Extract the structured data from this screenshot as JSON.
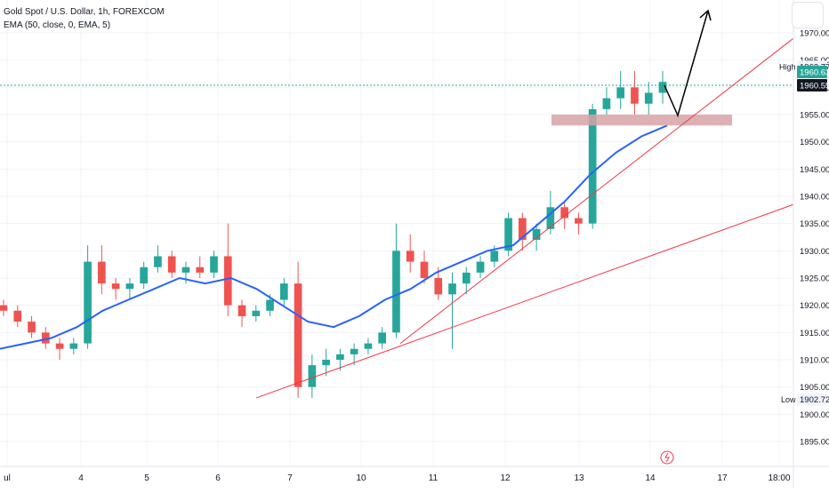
{
  "legend": {
    "symbol": "Gold Spot / U.S. Dollar, 1h, FOREXCOM",
    "indicator": "EMA (50, close, 0, EMA, 5)"
  },
  "price_scale": {
    "high_label": "High",
    "high_value": "1963.77",
    "last_value": "1960.63",
    "line_value": "1960.55",
    "low_label": "Low",
    "low_value": "1902.72"
  },
  "colors": {
    "up": "#26a69a",
    "down": "#ef5350",
    "ema": "#2962ff",
    "trendline": "#f23645",
    "zone": "#d7a3a7",
    "arrow": "#000000",
    "last_price_badge": "#26a69a",
    "line_value_badge": "#131722"
  },
  "chart_data": {
    "type": "candlestick",
    "title": "Gold Spot / U.S. Dollar, 1h, FOREXCOM",
    "ylim": [
      1891,
      1973
    ],
    "y_ticks": [
      1895,
      1900,
      1905,
      1910,
      1915,
      1920,
      1925,
      1930,
      1935,
      1940,
      1945,
      1950,
      1955,
      1960,
      1965,
      1970
    ],
    "x_tick_labels": [
      "ul",
      "4",
      "5",
      "6",
      "7",
      "10",
      "11",
      "12",
      "13",
      "14",
      "17",
      "18:00"
    ],
    "ohlc_approx": [
      [
        1920,
        1921,
        1918,
        1919
      ],
      [
        1919,
        1920,
        1916,
        1917
      ],
      [
        1917,
        1918,
        1914,
        1915
      ],
      [
        1915,
        1916,
        1912,
        1913
      ],
      [
        1913,
        1914,
        1910,
        1912
      ],
      [
        1912,
        1914,
        1911,
        1913
      ],
      [
        1913,
        1931,
        1912,
        1928
      ],
      [
        1928,
        1931,
        1922,
        1924
      ],
      [
        1924,
        1925,
        1921,
        1923
      ],
      [
        1923,
        1925,
        1921,
        1924
      ],
      [
        1924,
        1928,
        1923,
        1927
      ],
      [
        1927,
        1931,
        1926,
        1929
      ],
      [
        1929,
        1930,
        1925,
        1926
      ],
      [
        1926,
        1928,
        1924,
        1927
      ],
      [
        1927,
        1929,
        1925,
        1926
      ],
      [
        1926,
        1930,
        1925,
        1929
      ],
      [
        1929,
        1935,
        1918,
        1920
      ],
      [
        1920,
        1921,
        1916,
        1918
      ],
      [
        1918,
        1920,
        1917,
        1919
      ],
      [
        1919,
        1922,
        1918,
        1921
      ],
      [
        1921,
        1925,
        1920,
        1924
      ],
      [
        1924,
        1928,
        1903,
        1905
      ],
      [
        1905,
        1911,
        1903,
        1909
      ],
      [
        1909,
        1912,
        1907,
        1910
      ],
      [
        1910,
        1912,
        1908,
        1911
      ],
      [
        1911,
        1913,
        1909,
        1912
      ],
      [
        1912,
        1914,
        1911,
        1913
      ],
      [
        1913,
        1916,
        1912,
        1915
      ],
      [
        1915,
        1935,
        1914,
        1930
      ],
      [
        1930,
        1933,
        1926,
        1928
      ],
      [
        1928,
        1930,
        1924,
        1925
      ],
      [
        1925,
        1927,
        1921,
        1922
      ],
      [
        1922,
        1926,
        1912,
        1924
      ],
      [
        1924,
        1927,
        1922,
        1926
      ],
      [
        1926,
        1929,
        1925,
        1928
      ],
      [
        1928,
        1931,
        1927,
        1930
      ],
      [
        1930,
        1937,
        1929,
        1936
      ],
      [
        1936,
        1937,
        1930,
        1932
      ],
      [
        1932,
        1935,
        1930,
        1934
      ],
      [
        1934,
        1941,
        1933,
        1938
      ],
      [
        1938,
        1939,
        1934,
        1936
      ],
      [
        1936,
        1937,
        1933,
        1935
      ],
      [
        1935,
        1957,
        1934,
        1956
      ],
      [
        1956,
        1960,
        1955,
        1958
      ],
      [
        1958,
        1963,
        1956,
        1960
      ],
      [
        1960,
        1963,
        1955,
        1957
      ],
      [
        1957,
        1961,
        1955,
        1959
      ],
      [
        1959,
        1963,
        1957,
        1961
      ]
    ],
    "ema": {
      "name": "EMA (50, close, 0, EMA, 5)",
      "values": [
        1912,
        1913,
        1914,
        1916,
        1919,
        1921,
        1923,
        1925,
        1924,
        1925,
        1923,
        1920,
        1917,
        1916,
        1918,
        1921,
        1923,
        1926,
        1928,
        1930,
        1931,
        1935,
        1939,
        1944,
        1948,
        1951,
        1953
      ]
    },
    "annotations": {
      "support_zone": [
        1953,
        1955
      ],
      "trendlines": 2,
      "projection_arrow": "up"
    }
  }
}
